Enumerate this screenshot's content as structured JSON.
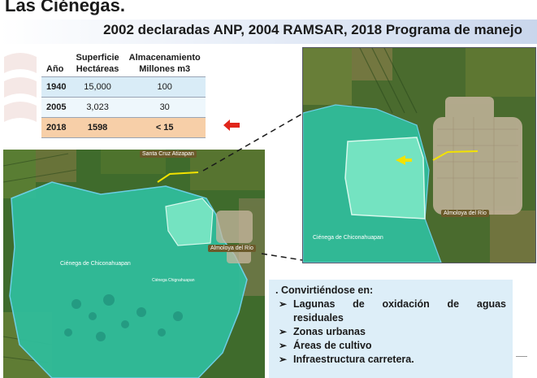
{
  "title": "Las Ciénegas.",
  "subtitle": "2002 declaradas ANP, 2004 RAMSAR, 2018 Programa de manejo",
  "table": {
    "headers": {
      "year": "Año",
      "surface": [
        "Superficie",
        "Hectáreas"
      ],
      "storage": [
        "Almacenamiento",
        "Millones m3"
      ]
    },
    "rows": [
      {
        "year": "1940",
        "surface": "15,000",
        "storage": "100"
      },
      {
        "year": "2005",
        "surface": "3,023",
        "storage": "30"
      },
      {
        "year": "2018",
        "surface": "1598",
        "storage": "< 15"
      }
    ]
  },
  "map_left": {
    "label_top": "Santa Cruz Atizapan",
    "label_town": "Almoloya del Río",
    "label_wetland": "Ciénega de Chiconahuapan",
    "label_small": "Ciénega Chignahuapan"
  },
  "map_right": {
    "label_town": "Almoloya del Río",
    "label_wetland": "Ciénega de Chiconahuapan"
  },
  "bullets": {
    "heading": ". Convirtiéndose en:",
    "items": [
      "Lagunas de oxidación de aguas residuales",
      "Zonas urbanas",
      "Áreas de cultivo",
      "Infraestructura carretera."
    ]
  },
  "colors": {
    "wetland": "#2fbf9e",
    "highlight_row": "#f7cfa8",
    "arrow_red": "#e0261b",
    "arrow_yellow": "#f2e200"
  }
}
